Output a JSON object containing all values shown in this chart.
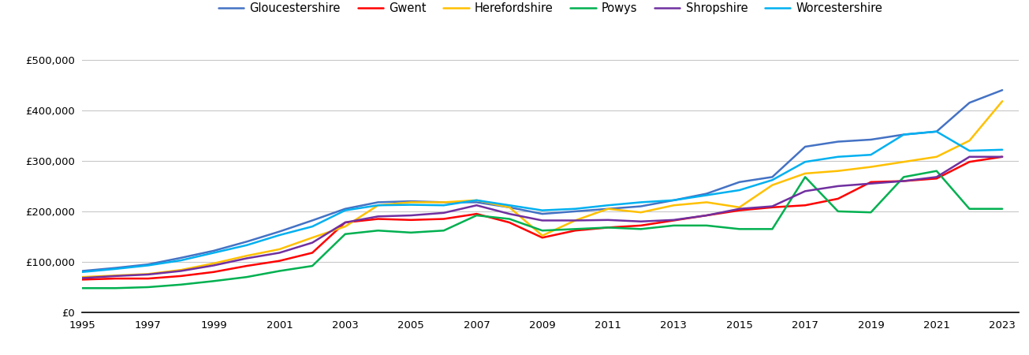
{
  "years": [
    1995,
    1996,
    1997,
    1998,
    1999,
    2000,
    2001,
    2002,
    2003,
    2004,
    2005,
    2006,
    2007,
    2008,
    2009,
    2010,
    2011,
    2012,
    2013,
    2014,
    2015,
    2016,
    2017,
    2018,
    2019,
    2020,
    2021,
    2022,
    2023
  ],
  "Gloucestershire": [
    82000,
    88000,
    95000,
    108000,
    122000,
    140000,
    160000,
    182000,
    205000,
    218000,
    220000,
    218000,
    218000,
    208000,
    195000,
    200000,
    205000,
    210000,
    222000,
    235000,
    258000,
    268000,
    328000,
    338000,
    342000,
    352000,
    358000,
    415000,
    440000
  ],
  "Gwent": [
    65000,
    67000,
    67000,
    72000,
    80000,
    92000,
    102000,
    118000,
    178000,
    185000,
    183000,
    185000,
    195000,
    178000,
    148000,
    162000,
    168000,
    172000,
    182000,
    192000,
    202000,
    208000,
    212000,
    225000,
    258000,
    260000,
    265000,
    298000,
    308000
  ],
  "Herefordshire": [
    70000,
    73000,
    76000,
    84000,
    97000,
    112000,
    125000,
    148000,
    170000,
    212000,
    218000,
    218000,
    222000,
    208000,
    152000,
    182000,
    205000,
    198000,
    212000,
    218000,
    208000,
    252000,
    275000,
    280000,
    288000,
    298000,
    308000,
    340000,
    418000
  ],
  "Powys": [
    48000,
    48000,
    50000,
    55000,
    62000,
    70000,
    82000,
    92000,
    155000,
    162000,
    158000,
    162000,
    192000,
    185000,
    162000,
    165000,
    168000,
    165000,
    172000,
    172000,
    165000,
    165000,
    268000,
    200000,
    198000,
    268000,
    280000,
    205000,
    205000
  ],
  "Shropshire": [
    68000,
    72000,
    75000,
    82000,
    93000,
    107000,
    118000,
    138000,
    178000,
    190000,
    192000,
    197000,
    212000,
    195000,
    182000,
    182000,
    183000,
    180000,
    183000,
    192000,
    205000,
    210000,
    240000,
    250000,
    255000,
    260000,
    268000,
    308000,
    308000
  ],
  "Worcestershire": [
    80000,
    86000,
    93000,
    103000,
    118000,
    133000,
    153000,
    170000,
    202000,
    212000,
    213000,
    212000,
    222000,
    212000,
    202000,
    205000,
    212000,
    218000,
    222000,
    232000,
    242000,
    262000,
    298000,
    308000,
    312000,
    352000,
    358000,
    320000,
    322000
  ],
  "colors": {
    "Gloucestershire": "#4472C4",
    "Gwent": "#FF0000",
    "Herefordshire": "#FFC000",
    "Powys": "#00B050",
    "Shropshire": "#7030A0",
    "Worcestershire": "#00B0F0"
  },
  "ylim": [
    0,
    520000
  ],
  "yticks": [
    0,
    100000,
    200000,
    300000,
    400000,
    500000
  ],
  "xlim_left": 1995,
  "xlim_right": 2023.5,
  "background_color": "#ffffff",
  "grid_color": "#c8c8c8",
  "linewidth": 1.8
}
